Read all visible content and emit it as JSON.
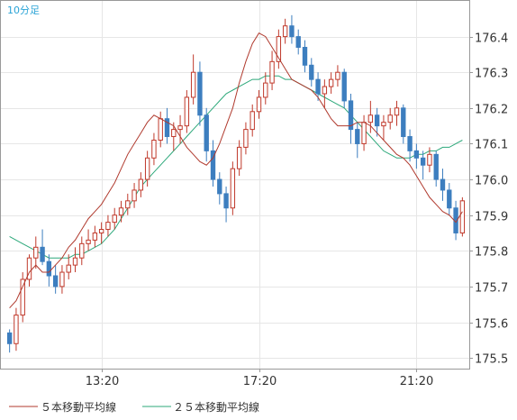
{
  "chart_data": {
    "type": "candlestick",
    "timeframe_label": "10分足",
    "x_tick_labels": [
      "13:20",
      "17:20",
      "21:20"
    ],
    "y_ticks": [
      175.5,
      175.6,
      175.7,
      175.8,
      175.9,
      176.0,
      176.1,
      176.2,
      176.3,
      176.4
    ],
    "ylim": [
      175.47,
      176.5
    ],
    "grid": true,
    "legend_position": "bottom-left",
    "colors": {
      "up": "#c0392b",
      "down": "#3d7ebf",
      "ma5": "#b03a2e",
      "ma25": "#2ca87a",
      "grid": "#e6e6e6",
      "axis": "#999999",
      "label": "#29a3d6"
    },
    "series": [
      {
        "name": "５本移動平均線",
        "color": "#b03a2e"
      },
      {
        "name": "２５本移動平均線",
        "color": "#2ca87a"
      }
    ],
    "candles": [
      [
        175.57,
        175.58,
        175.515,
        175.54
      ],
      [
        175.54,
        175.64,
        175.52,
        175.62
      ],
      [
        175.62,
        175.74,
        175.6,
        175.72
      ],
      [
        175.72,
        175.79,
        175.7,
        175.78
      ],
      [
        175.78,
        175.84,
        175.75,
        175.81
      ],
      [
        175.81,
        175.86,
        175.76,
        175.77
      ],
      [
        175.77,
        175.79,
        175.7,
        175.73
      ],
      [
        175.73,
        175.76,
        175.68,
        175.7
      ],
      [
        175.7,
        175.76,
        175.68,
        175.74
      ],
      [
        175.74,
        175.79,
        175.72,
        175.76
      ],
      [
        175.76,
        175.81,
        175.74,
        175.78
      ],
      [
        175.78,
        175.84,
        175.76,
        175.82
      ],
      [
        175.82,
        175.86,
        175.8,
        175.83
      ],
      [
        175.83,
        175.87,
        175.81,
        175.85
      ],
      [
        175.85,
        175.88,
        175.82,
        175.86
      ],
      [
        175.86,
        175.9,
        175.84,
        175.88
      ],
      [
        175.88,
        175.92,
        175.86,
        175.9
      ],
      [
        175.9,
        175.94,
        175.88,
        175.92
      ],
      [
        175.92,
        175.96,
        175.9,
        175.94
      ],
      [
        175.94,
        175.99,
        175.92,
        175.97
      ],
      [
        175.97,
        176.02,
        175.95,
        176.0
      ],
      [
        176.0,
        176.08,
        175.98,
        176.06
      ],
      [
        176.06,
        176.13,
        176.04,
        176.11
      ],
      [
        176.11,
        176.19,
        176.09,
        176.17
      ],
      [
        176.17,
        176.2,
        176.1,
        176.12
      ],
      [
        176.12,
        176.16,
        176.08,
        176.14
      ],
      [
        176.14,
        176.18,
        176.1,
        176.15
      ],
      [
        176.15,
        176.25,
        176.13,
        176.23
      ],
      [
        176.23,
        176.35,
        176.21,
        176.3
      ],
      [
        176.3,
        176.33,
        176.15,
        176.18
      ],
      [
        176.18,
        176.2,
        176.05,
        176.08
      ],
      [
        176.08,
        176.11,
        175.98,
        176.0
      ],
      [
        176.0,
        176.02,
        175.93,
        175.96
      ],
      [
        175.96,
        175.98,
        175.88,
        175.92
      ],
      [
        175.92,
        176.05,
        175.9,
        176.03
      ],
      [
        176.03,
        176.11,
        176.01,
        176.09
      ],
      [
        176.09,
        176.16,
        176.07,
        176.14
      ],
      [
        176.14,
        176.21,
        176.12,
        176.19
      ],
      [
        176.19,
        176.25,
        176.17,
        176.23
      ],
      [
        176.23,
        176.3,
        176.21,
        176.27
      ],
      [
        176.27,
        176.36,
        176.25,
        176.33
      ],
      [
        176.33,
        176.42,
        176.31,
        176.4
      ],
      [
        176.4,
        176.45,
        176.38,
        176.43
      ],
      [
        176.43,
        176.46,
        176.38,
        176.4
      ],
      [
        176.4,
        176.42,
        176.35,
        176.37
      ],
      [
        176.37,
        176.39,
        176.3,
        176.32
      ],
      [
        176.32,
        176.34,
        176.26,
        176.28
      ],
      [
        176.28,
        176.3,
        176.22,
        176.24
      ],
      [
        176.24,
        176.28,
        176.2,
        176.26
      ],
      [
        176.26,
        176.3,
        176.24,
        176.28
      ],
      [
        176.28,
        176.32,
        176.26,
        176.3
      ],
      [
        176.3,
        176.31,
        176.2,
        176.22
      ],
      [
        176.22,
        176.24,
        176.1,
        176.14
      ],
      [
        176.14,
        176.16,
        176.06,
        176.1
      ],
      [
        176.1,
        176.18,
        176.08,
        176.16
      ],
      [
        176.16,
        176.22,
        176.13,
        176.18
      ],
      [
        176.18,
        176.2,
        176.12,
        176.15
      ],
      [
        176.15,
        176.18,
        176.11,
        176.16
      ],
      [
        176.16,
        176.2,
        176.14,
        176.18
      ],
      [
        176.18,
        176.22,
        176.15,
        176.2
      ],
      [
        176.2,
        176.21,
        176.1,
        176.12
      ],
      [
        176.12,
        176.14,
        176.05,
        176.08
      ],
      [
        176.08,
        176.1,
        176.03,
        176.06
      ],
      [
        176.06,
        176.08,
        176.0,
        176.04
      ],
      [
        176.04,
        176.09,
        176.02,
        176.07
      ],
      [
        176.07,
        176.08,
        175.98,
        176.0
      ],
      [
        176.0,
        176.03,
        175.94,
        175.97
      ],
      [
        175.97,
        175.99,
        175.9,
        175.92
      ],
      [
        175.92,
        175.94,
        175.83,
        175.85
      ],
      [
        175.85,
        175.95,
        175.84,
        175.94
      ]
    ],
    "ma5": [
      175.64,
      175.66,
      175.7,
      175.74,
      175.76,
      175.74,
      175.74,
      175.76,
      175.78,
      175.81,
      175.83,
      175.86,
      175.89,
      175.91,
      175.93,
      175.96,
      175.99,
      176.03,
      176.07,
      176.1,
      176.13,
      176.16,
      176.18,
      176.17,
      176.16,
      176.15,
      176.12,
      176.09,
      176.07,
      176.05,
      176.04,
      176.06,
      176.1,
      176.15,
      176.2,
      176.27,
      176.33,
      176.38,
      176.41,
      176.4,
      176.37,
      176.34,
      176.31,
      176.28,
      176.27,
      176.26,
      176.25,
      176.23,
      176.2,
      176.17,
      176.15,
      176.15,
      176.15,
      176.16,
      176.16,
      176.15,
      176.13,
      176.11,
      176.09,
      176.07,
      176.06,
      176.04,
      176.01,
      175.98,
      175.95,
      175.93,
      175.91,
      175.9,
      175.88,
      175.91
    ],
    "ma25": [
      175.84,
      175.83,
      175.82,
      175.81,
      175.8,
      175.79,
      175.78,
      175.78,
      175.78,
      175.78,
      175.79,
      175.79,
      175.8,
      175.81,
      175.82,
      175.84,
      175.86,
      175.89,
      175.92,
      175.95,
      175.98,
      176.0,
      176.02,
      176.04,
      176.06,
      176.08,
      176.1,
      176.12,
      176.14,
      176.16,
      176.18,
      176.2,
      176.22,
      176.24,
      176.25,
      176.26,
      176.27,
      176.28,
      176.28,
      176.29,
      176.29,
      176.29,
      176.28,
      176.28,
      176.27,
      176.26,
      176.25,
      176.24,
      176.23,
      176.22,
      176.21,
      176.2,
      176.18,
      176.16,
      176.14,
      176.12,
      176.1,
      176.08,
      176.07,
      176.06,
      176.06,
      176.06,
      176.07,
      176.07,
      176.08,
      176.08,
      176.09,
      176.09,
      176.1,
      176.11
    ]
  }
}
